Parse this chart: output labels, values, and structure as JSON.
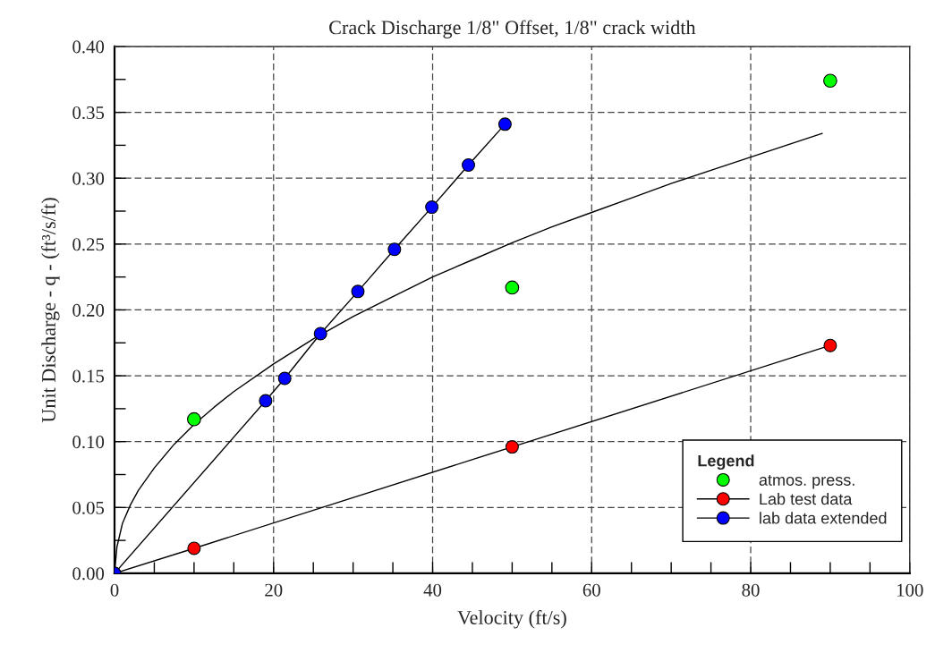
{
  "chart_data": {
    "type": "line",
    "title": "Crack Discharge 1/8\" Offset, 1/8\" crack width",
    "xlabel": "Velocity (ft/s)",
    "ylabel": "Unit Discharge - q - (ft³/s/ft)",
    "legend_title": "Legend",
    "xlim": [
      0,
      100
    ],
    "xticks": [
      0,
      {
        "value": 5,
        "label": null
      },
      {
        "value": 10,
        "label": null
      },
      {
        "value": 15,
        "label": null
      },
      20,
      {
        "value": 25,
        "label": null
      },
      {
        "value": 30,
        "label": null
      },
      {
        "value": 35,
        "label": null
      },
      40,
      {
        "value": 45,
        "label": null
      },
      {
        "value": 50,
        "label": null
      },
      {
        "value": 55,
        "label": null
      },
      60,
      {
        "value": 65,
        "label": null
      },
      {
        "value": 70,
        "label": null
      },
      {
        "value": 75,
        "label": null
      },
      80,
      {
        "value": 85,
        "label": null
      },
      {
        "value": 90,
        "label": null
      },
      {
        "value": 95,
        "label": null
      },
      100
    ],
    "ylim": [
      0,
      0.4
    ],
    "yticks": [
      {
        "value": 0,
        "label": "0.00"
      },
      {
        "value": 0.025,
        "label": null
      },
      {
        "value": 0.05,
        "label": "0.05"
      },
      {
        "value": 0.075,
        "label": null
      },
      {
        "value": 0.1,
        "label": "0.10"
      },
      {
        "value": 0.125,
        "label": null
      },
      {
        "value": 0.15,
        "label": "0.15"
      },
      {
        "value": 0.175,
        "label": null
      },
      {
        "value": 0.2,
        "label": "0.20"
      },
      {
        "value": 0.225,
        "label": null
      },
      {
        "value": 0.25,
        "label": "0.25"
      },
      {
        "value": 0.275,
        "label": null
      },
      {
        "value": 0.3,
        "label": "0.30"
      },
      {
        "value": 0.325,
        "label": null
      },
      {
        "value": 0.35,
        "label": "0.35"
      },
      {
        "value": 0.375,
        "label": null
      },
      {
        "value": 0.4,
        "label": "0.40"
      }
    ],
    "series": [
      {
        "color": "#000000",
        "marker": "none",
        "line_style": "solid",
        "x": [
          0,
          0.3,
          1,
          2,
          3,
          5,
          7.5,
          10,
          12.5,
          15,
          20,
          25,
          30,
          35,
          40,
          45,
          50,
          55,
          60,
          65,
          70,
          75,
          80,
          85,
          89
        ],
        "values": [
          0,
          0.02,
          0.038,
          0.052,
          0.063,
          0.08,
          0.098,
          0.113,
          0.126,
          0.138,
          0.159,
          0.178,
          0.195,
          0.21,
          0.225,
          0.238,
          0.251,
          0.263,
          0.274,
          0.285,
          0.296,
          0.306,
          0.316,
          0.326,
          0.334
        ]
      },
      {
        "name": "atmos. press.",
        "type": "scatter",
        "color": "#00ff00",
        "marker": "circle",
        "x": [
          10,
          50,
          90
        ],
        "values": [
          0.117,
          0.217,
          0.374
        ]
      },
      {
        "name": "Lab test data",
        "color": "#ff0000",
        "marker": "circle",
        "line_style": "solid",
        "x": [
          0,
          10,
          50,
          90
        ],
        "values": [
          0,
          0.019,
          0.096,
          0.173
        ]
      },
      {
        "name": "lab data extended",
        "color": "#0000ff",
        "marker": "circle",
        "line_style": "solid",
        "x": [
          0,
          19,
          21.4,
          25.9,
          30.6,
          35.2,
          39.9,
          44.5,
          49.1
        ],
        "values": [
          0,
          0.131,
          0.148,
          0.182,
          0.214,
          0.246,
          0.278,
          0.31,
          0.341
        ]
      }
    ],
    "grid": true,
    "legend": "bottom right"
  }
}
